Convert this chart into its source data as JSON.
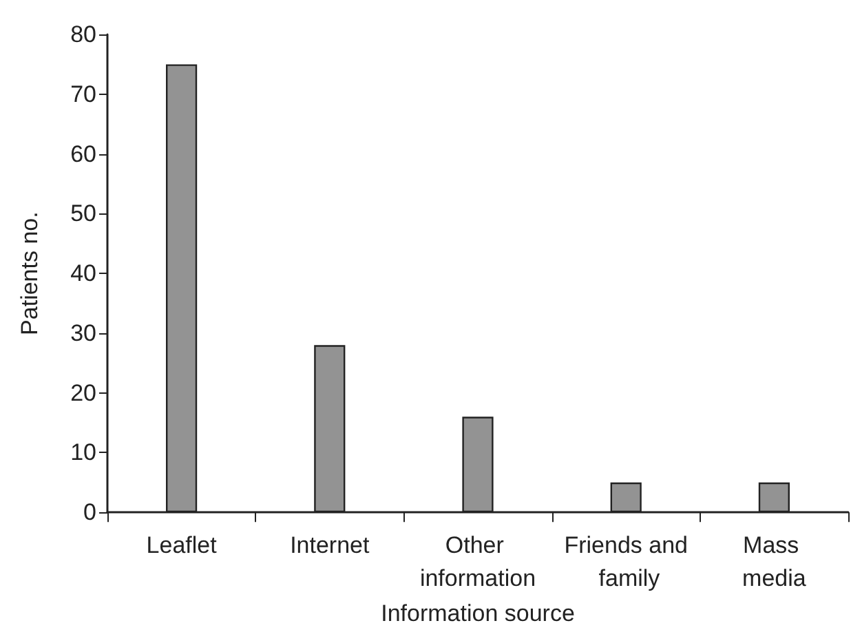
{
  "chart_data": {
    "type": "bar",
    "xlabel": "Information source",
    "ylabel": "Patients no.",
    "categories": [
      "Leaflet",
      "Internet",
      "Other information",
      "Friends and family",
      "Mass media"
    ],
    "values": [
      75,
      28,
      16,
      5,
      5
    ],
    "color": "#939393",
    "ylim": [
      0,
      80
    ],
    "yticks": [
      0,
      10,
      20,
      30,
      40,
      50,
      60,
      70,
      80
    ],
    "grid": false
  }
}
